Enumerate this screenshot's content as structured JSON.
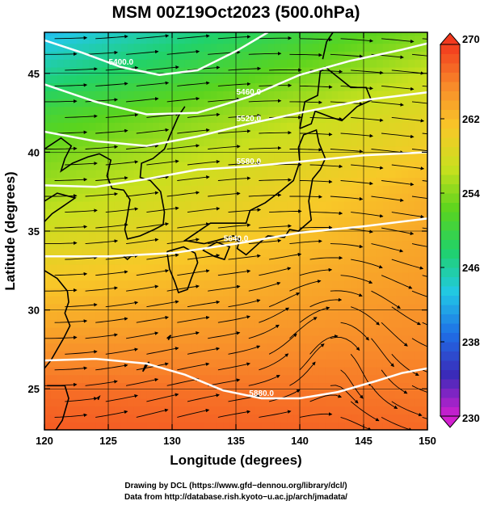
{
  "chart_data": {
    "type": "heatmap",
    "title": "MSM 00Z19Oct2023 (500.0hPa)",
    "xlabel": "Longitude (degrees)",
    "ylabel": "Latitude  (degrees)",
    "xlim": [
      120,
      150
    ],
    "ylim": [
      22.4,
      47.6
    ],
    "x_ticks": [
      "120",
      "125",
      "130",
      "135",
      "140",
      "145",
      "150"
    ],
    "y_ticks": [
      "25",
      "30",
      "35",
      "40",
      "45"
    ],
    "colorbar": {
      "min": 230,
      "max": 270,
      "ticks": [
        "230",
        "238",
        "246",
        "254",
        "262",
        "270"
      ],
      "colors": [
        "#d21fd0",
        "#3a2ab8",
        "#1f6fe6",
        "#22c8e6",
        "#20d26a",
        "#5ad41e",
        "#c8e01e",
        "#f8c828",
        "#f88a2a",
        "#f23a1e"
      ]
    },
    "temperature_field": {
      "unit": "K",
      "latitudes": [
        47.5,
        45,
        42.5,
        40,
        37.5,
        35,
        32.5,
        30,
        27.5,
        25,
        22.5
      ],
      "values_at_125E": [
        244.5,
        248,
        252,
        254.5,
        256.5,
        258.5,
        261,
        263,
        265,
        267,
        268
      ],
      "values_at_145E": [
        252,
        255,
        257.5,
        259.5,
        261.5,
        262.5,
        263.5,
        264.5,
        265.5,
        266.5,
        267.5
      ]
    },
    "height_contours": [
      {
        "label": "5400.0",
        "lon": [
          120,
          123,
          126,
          129,
          132,
          135,
          137.5
        ],
        "lat": [
          47.1,
          46.3,
          45.4,
          44.9,
          45.2,
          46.4,
          47.6
        ]
      },
      {
        "label": "5460.0",
        "lon": [
          120,
          124,
          128,
          132,
          136,
          140,
          144,
          148,
          150
        ],
        "lat": [
          44.3,
          43.2,
          42.4,
          42.5,
          43.5,
          44.9,
          45.8,
          46.5,
          46.9
        ]
      },
      {
        "label": "5520.0",
        "lon": [
          120,
          124,
          128,
          132,
          136,
          140,
          145,
          150
        ],
        "lat": [
          41.3,
          40.7,
          40.4,
          41,
          41.8,
          42.5,
          43.3,
          43.8
        ]
      },
      {
        "label": "5580.0",
        "lon": [
          120,
          124,
          128,
          132,
          136,
          140,
          145,
          150
        ],
        "lat": [
          37.9,
          37.8,
          38.3,
          38.9,
          39.1,
          39.4,
          39.8,
          40
        ]
      },
      {
        "label": "5640.0",
        "lon": [
          120,
          125,
          130,
          135,
          140,
          145,
          150
        ],
        "lat": [
          33.4,
          33.4,
          33.6,
          34.2,
          34.9,
          35.3,
          35.8
        ]
      },
      {
        "label": "5880.0",
        "lon": [
          120,
          124,
          128,
          131,
          134,
          137,
          140,
          143,
          146,
          148,
          150
        ],
        "lat": [
          26.8,
          26.9,
          26.6,
          25.9,
          24.9,
          24.4,
          24.4,
          24.8,
          25.5,
          26,
          26.3
        ]
      }
    ],
    "contour_labels_shown": [
      "5400.0",
      "5460.0",
      "5520.0",
      "5580.0",
      "5640.0",
      "5880.0"
    ],
    "wind_streamlines": "westerly flow, stronger in north; anticyclonic circulation near 140-145E 27-32N",
    "grid": true
  },
  "credits": {
    "line1": "Drawing by DCL (https://www.gfd−dennou.org/library/dcl/)",
    "line2": "Data from http://database.rish.kyoto−u.ac.jp/arch/jmadata/"
  },
  "colors": {
    "contour": "#ffffff",
    "coastline": "#000000",
    "streamline": "#000000",
    "grid": "#000000"
  }
}
